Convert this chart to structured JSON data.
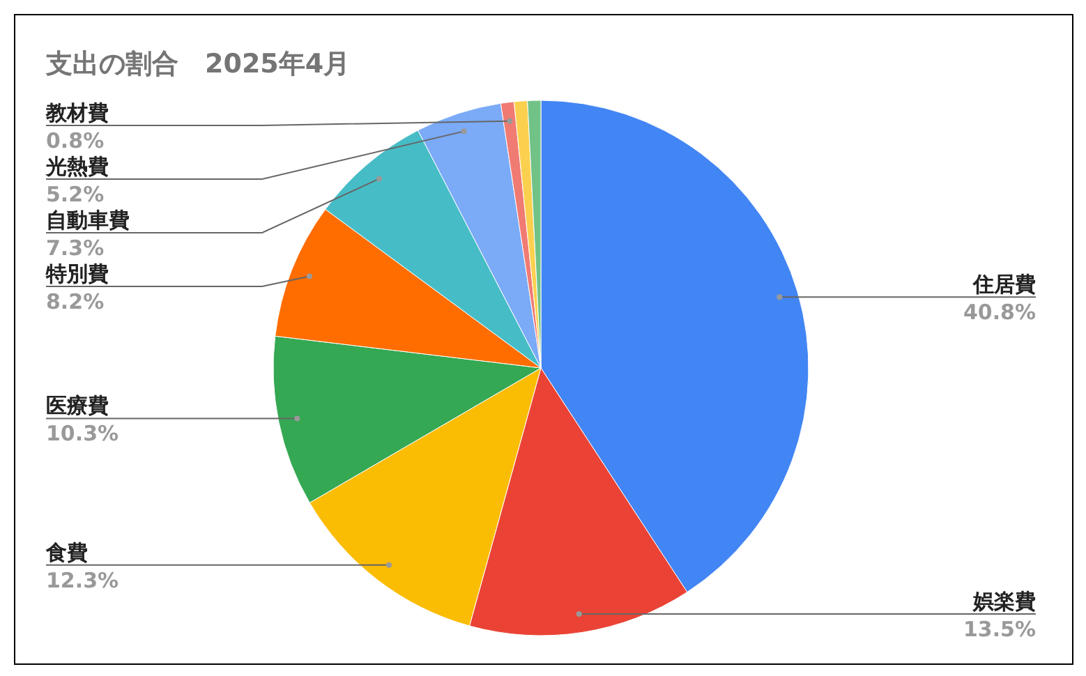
{
  "chart_data": {
    "type": "pie",
    "title": "支出の割合　2025年4月",
    "categories": [
      "住居費",
      "娯楽費",
      "食費",
      "医療費",
      "特別費",
      "自動車費",
      "光熱費",
      "教材費",
      null,
      null
    ],
    "values": [
      40.8,
      13.5,
      12.3,
      10.3,
      8.2,
      7.3,
      5.2,
      0.8,
      0.8,
      0.8
    ],
    "value_labels": [
      "40.8%",
      "13.5%",
      "12.3%",
      "10.3%",
      "8.2%",
      "7.3%",
      "5.2%",
      "0.8%",
      null,
      null
    ],
    "colors": [
      "#4285f4",
      "#ea4335",
      "#fbbc04",
      "#34a853",
      "#ff6d01",
      "#46bdc6",
      "#7baaf7",
      "#f07b72",
      "#fcd04f",
      "#71c287"
    ]
  }
}
